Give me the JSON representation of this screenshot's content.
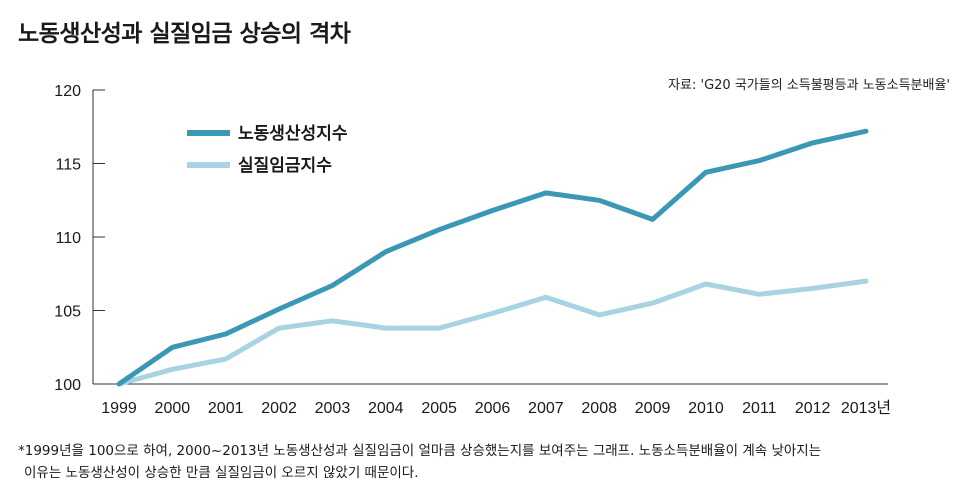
{
  "title": "노동생산성과 실질임금 상승의 격차",
  "source": "자료: 'G20 국가들의 소득불평등과 노동소득분배율'",
  "note": {
    "line1": "*1999년을 100으로 하여, 2000~2013년 노동생산성과 실질임금이 얼마큼 상승했는지를 보여주는 그래프. 노동소득분배율이 계속 낮아지는",
    "line2": "이유는 노동생산성이 상승한 만큼 실질임금이 오르지 않았기 때문이다."
  },
  "chart_data": {
    "type": "line",
    "categories": [
      "1999",
      "2000",
      "2001",
      "2002",
      "2003",
      "2004",
      "2005",
      "2006",
      "2007",
      "2008",
      "2009",
      "2010",
      "2011",
      "2012",
      "2013년"
    ],
    "series": [
      {
        "name": "노동생산성지수",
        "color": "#3a98b5",
        "values": [
          100,
          102.5,
          103.4,
          105.1,
          106.7,
          109.0,
          110.5,
          111.8,
          113.0,
          112.5,
          111.2,
          114.4,
          115.2,
          116.4,
          117.2
        ]
      },
      {
        "name": "실질임금지수",
        "color": "#a8d3e2",
        "values": [
          100,
          101.0,
          101.7,
          103.8,
          104.3,
          103.8,
          103.8,
          104.8,
          105.9,
          104.7,
          105.5,
          106.8,
          106.1,
          106.5,
          107.0
        ]
      }
    ],
    "yticks": [
      100,
      105,
      110,
      115,
      120
    ],
    "ylim": [
      100,
      120
    ],
    "xlabel": "",
    "ylabel": "",
    "legend_position": "top-left"
  }
}
